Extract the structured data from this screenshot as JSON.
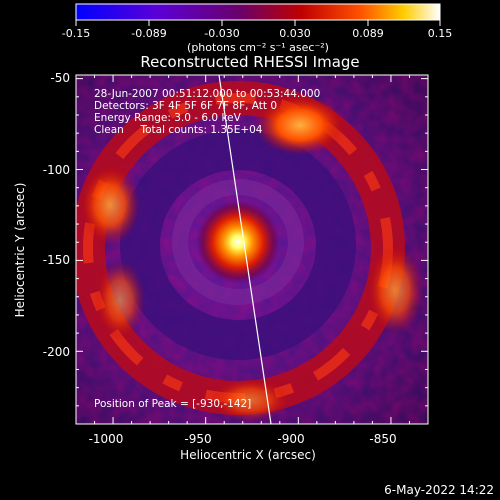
{
  "colorbar": {
    "tick_labels": [
      "-0.15",
      "-0.089",
      "-0.030",
      "0.030",
      "0.089",
      "0.15"
    ],
    "unit_label": "(photons cm⁻² s⁻¹ asec⁻²)"
  },
  "plot": {
    "title": "Reconstructed RHESSI Image",
    "info_lines": [
      "28-Jun-2007 00:51:12.000 to 00:53:44.000",
      "Detectors: 3F 4F 5F 6F 7F 8F, Att 0",
      "Energy Range: 3.0 - 6.0 keV",
      "Clean     Total counts: 1.35E+04"
    ],
    "peak_label": "Position of Peak = [-930,-142]",
    "x_axis": {
      "label": "Heliocentric X (arcsec)",
      "ticks": [
        "-1000",
        "-950",
        "-900",
        "-850"
      ],
      "range": [
        -1020,
        -830
      ]
    },
    "y_axis": {
      "label": "Heliocentric Y (arcsec)",
      "ticks": [
        "-50",
        "-100",
        "-150",
        "-200"
      ],
      "range": [
        -240,
        -48
      ]
    }
  },
  "footer": {
    "timestamp": "6-May-2022 14:22"
  }
}
